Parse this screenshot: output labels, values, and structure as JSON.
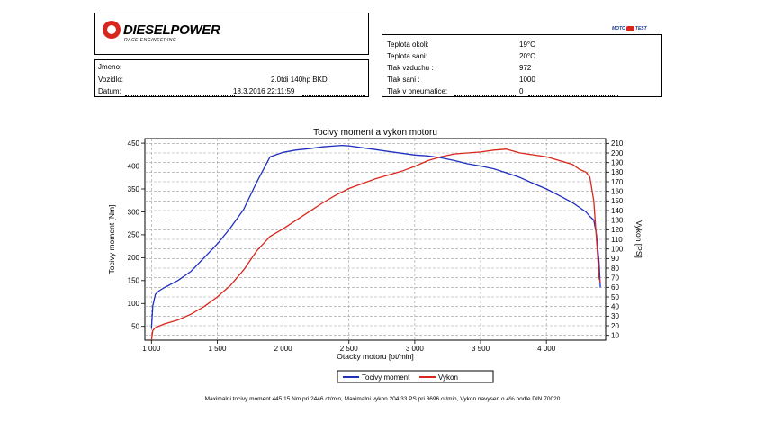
{
  "header": {
    "brand": "DIESELPOWER",
    "brand_sub": "RACE ENGINEERING",
    "badge_left": "MOTO",
    "badge_right": "TEST"
  },
  "vehicle": {
    "name_label": "Jmeno:",
    "name_value": "",
    "car_label": "Vozidlo:",
    "car_value": "2.0tdi 140hp BKD",
    "date_label": "Datum:",
    "date_value": "18.3.2016 22:11:59"
  },
  "environment": [
    {
      "label": "Teplota okoli:",
      "value": "19°C"
    },
    {
      "label": "Teplota sani:",
      "value": "20°C"
    },
    {
      "label": "Tlak vzduchu :",
      "value": "972"
    },
    {
      "label": "Tlak sani :",
      "value": "1000"
    },
    {
      "label": "Tlak v pneumatice:",
      "value": "0"
    }
  ],
  "footer_note": "Maximalni tocivy moment 445,15 Nm pri 2446 ot/min,  Maximalni vykon 204,33 PS pri 3696 ot/min,  Vykon navysen o 4% podle DIN 70020",
  "colors": {
    "torque": "#1f2fbf",
    "power": "#d9261c"
  },
  "chart_data": {
    "type": "line",
    "title": "Tocivy moment a vykon motoru",
    "xlabel": "Otacky motoru [ot/min]",
    "ylabel": "Tocivy moment [Nm]",
    "y2label": "Vykon [PS]",
    "xlim": [
      950,
      4450
    ],
    "ylim": [
      20,
      460
    ],
    "y2lim": [
      5,
      215
    ],
    "xticks": [
      1000,
      1500,
      2000,
      2500,
      3000,
      3500,
      4000
    ],
    "xtick_labels": [
      "1 000",
      "1 500",
      "2 000",
      "2 500",
      "3 000",
      "3 500",
      "4 000"
    ],
    "yticks": [
      50,
      100,
      150,
      200,
      250,
      300,
      350,
      400,
      450
    ],
    "y2ticks": [
      10,
      20,
      30,
      40,
      50,
      60,
      70,
      80,
      90,
      100,
      110,
      120,
      130,
      140,
      150,
      160,
      170,
      180,
      190,
      200,
      210
    ],
    "grid": true,
    "legend": "bottom-center",
    "series": [
      {
        "name": "Tocivy moment",
        "axis": "left",
        "x": [
          1000,
          1010,
          1030,
          1060,
          1100,
          1200,
          1300,
          1400,
          1500,
          1600,
          1700,
          1800,
          1900,
          2000,
          2100,
          2200,
          2300,
          2446,
          2500,
          2600,
          2700,
          2800,
          2900,
          3000,
          3100,
          3200,
          3300,
          3400,
          3500,
          3600,
          3700,
          3800,
          3900,
          4000,
          4100,
          4200,
          4250,
          4300,
          4330,
          4360,
          4380,
          4400,
          4410
        ],
        "y": [
          45,
          95,
          120,
          128,
          135,
          150,
          170,
          200,
          230,
          265,
          305,
          365,
          420,
          430,
          435,
          438,
          442,
          445,
          444,
          440,
          436,
          432,
          428,
          424,
          422,
          418,
          412,
          405,
          400,
          394,
          385,
          375,
          362,
          350,
          335,
          320,
          310,
          300,
          290,
          282,
          250,
          190,
          135
        ]
      },
      {
        "name": "Vykon",
        "axis": "right",
        "x": [
          1000,
          1010,
          1030,
          1100,
          1200,
          1300,
          1400,
          1500,
          1600,
          1700,
          1800,
          1900,
          2000,
          2100,
          2200,
          2300,
          2400,
          2500,
          2600,
          2700,
          2800,
          2900,
          3000,
          3100,
          3200,
          3300,
          3400,
          3500,
          3600,
          3696,
          3800,
          3900,
          4000,
          4100,
          4200,
          4250,
          4300,
          4330,
          4360,
          4380,
          4400,
          4410
        ],
        "y": [
          5,
          15,
          18,
          22,
          26,
          32,
          40,
          50,
          62,
          78,
          98,
          113,
          121,
          130,
          139,
          148,
          156,
          163,
          168,
          173,
          177,
          181,
          186,
          192,
          196,
          199,
          200,
          201,
          203,
          204,
          200,
          198,
          196,
          192,
          188,
          183,
          180,
          175,
          150,
          110,
          70,
          65
        ]
      }
    ]
  }
}
